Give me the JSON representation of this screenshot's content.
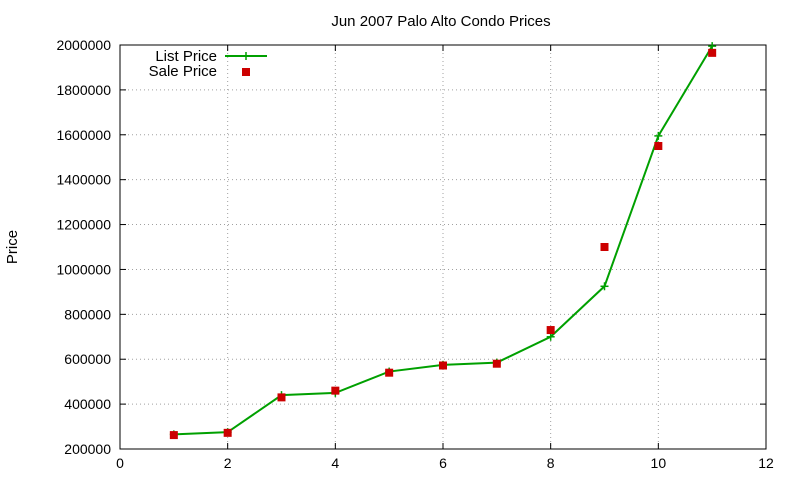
{
  "chart_data": {
    "type": "line",
    "title": "Jun 2007 Palo Alto Condo Prices",
    "xlabel": "",
    "ylabel": "Price",
    "xlim": [
      0,
      12
    ],
    "ylim": [
      200000,
      2000000
    ],
    "xticks": [
      "0",
      "2",
      "4",
      "6",
      "8",
      "10",
      "12"
    ],
    "yticks": [
      "200000",
      "400000",
      "600000",
      "800000",
      "1000000",
      "1200000",
      "1400000",
      "1600000",
      "1800000",
      "2000000"
    ],
    "grid": true,
    "legend_position": "top-left",
    "x": [
      1,
      2,
      3,
      4,
      5,
      6,
      7,
      8,
      9,
      10,
      11
    ],
    "series": [
      {
        "name": "List Price",
        "style": "line-with-plus-markers",
        "color": "#00a000",
        "values": [
          265000,
          275000,
          440000,
          450000,
          545000,
          575000,
          585000,
          700000,
          925000,
          1595000,
          1995000
        ]
      },
      {
        "name": "Sale Price",
        "style": "square-markers",
        "color": "#cc0000",
        "values": [
          262000,
          272000,
          430000,
          460000,
          540000,
          572000,
          580000,
          730000,
          1100000,
          1550000,
          1965000
        ]
      }
    ]
  }
}
